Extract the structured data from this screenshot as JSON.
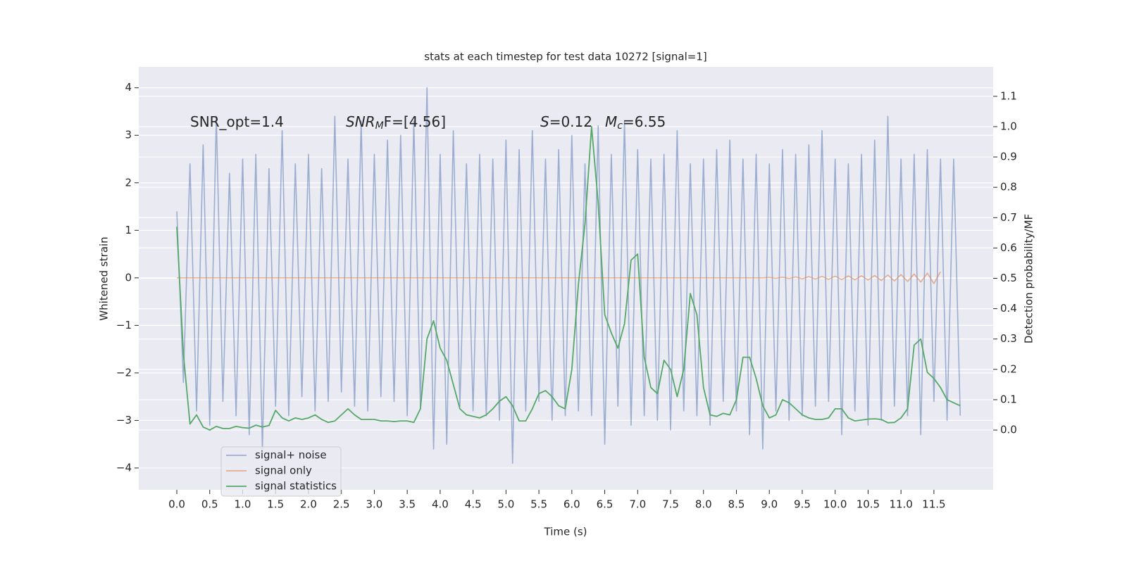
{
  "chart_data": {
    "type": "line",
    "title": "stats at each timestep for test data 10272 [signal=1]",
    "xlabel": "Time (s)",
    "ylabel": "Whitened strain",
    "y2label": "Detection probability/MF",
    "annotations": [
      [
        "SNR_opt=1.4"
      ],
      [
        "SNR",
        "M",
        "F=[4.56]"
      ],
      [
        "S",
        "=0.12"
      ],
      [
        "M",
        "c",
        "=6.55"
      ]
    ],
    "xlim": [
      -0.578,
      12.4
    ],
    "xticks": [
      {
        "value": 0,
        "label": "0.0"
      },
      0.5,
      {
        "value": 1,
        "label": "1.0"
      },
      1.5,
      {
        "value": 2,
        "label": "2.0"
      },
      2.5,
      {
        "value": 3,
        "label": "3.0"
      },
      3.5,
      {
        "value": 4,
        "label": "4.0"
      },
      4.5,
      {
        "value": 5,
        "label": "5.0"
      },
      5.5,
      {
        "value": 6,
        "label": "6.0"
      },
      6.5,
      {
        "value": 7,
        "label": "7.0"
      },
      7.5,
      {
        "value": 8,
        "label": "8.0"
      },
      8.5,
      {
        "value": 9,
        "label": "9.0"
      },
      9.5,
      {
        "value": 10,
        "label": "10.0"
      },
      10.5,
      {
        "value": 11,
        "label": "11.0"
      },
      11.5
    ],
    "ylim": [
      -4.46,
      4.44
    ],
    "yticks": [
      {
        "value": -4,
        "label": "−4"
      },
      {
        "value": -3,
        "label": "−3"
      },
      {
        "value": -2,
        "label": "−2"
      },
      {
        "value": -1,
        "label": "−1"
      },
      0,
      1,
      2,
      3,
      4
    ],
    "y2lim": [
      -0.197,
      1.197
    ],
    "y2ticks": [
      {
        "value": 0,
        "label": "0.0"
      },
      0.1,
      0.2,
      0.3,
      0.4,
      0.5,
      0.6,
      0.7,
      0.8,
      0.9,
      {
        "value": 1,
        "label": "1.0"
      },
      1.1
    ],
    "grid": true,
    "legend": "lower left",
    "x": [
      0.0,
      0.1,
      0.2,
      0.3,
      0.4,
      0.5,
      0.6,
      0.7,
      0.8,
      0.9,
      1.0,
      1.1,
      1.2,
      1.3,
      1.4,
      1.5,
      1.6,
      1.7,
      1.8,
      1.9,
      2.0,
      2.1,
      2.2,
      2.3,
      2.4,
      2.5,
      2.6,
      2.7,
      2.8,
      2.9,
      3.0,
      3.1,
      3.2,
      3.3,
      3.4,
      3.5,
      3.6,
      3.7,
      3.8,
      3.9,
      4.0,
      4.1,
      4.2,
      4.3,
      4.4,
      4.5,
      4.6,
      4.7,
      4.8,
      4.9,
      5.0,
      5.1,
      5.2,
      5.3,
      5.4,
      5.5,
      5.6,
      5.7,
      5.8,
      5.9,
      6.0,
      6.1,
      6.2,
      6.3,
      6.4,
      6.5,
      6.6,
      6.7,
      6.8,
      6.9,
      7.0,
      7.1,
      7.2,
      7.3,
      7.4,
      7.5,
      7.6,
      7.7,
      7.8,
      7.9,
      8.0,
      8.1,
      8.2,
      8.3,
      8.4,
      8.5,
      8.6,
      8.7,
      8.8,
      8.9,
      9.0,
      9.1,
      9.2,
      9.3,
      9.4,
      9.5,
      9.6,
      9.7,
      9.8,
      9.9,
      10.0,
      10.1,
      10.2,
      10.3,
      10.4,
      10.5,
      10.6,
      10.7,
      10.8,
      10.9,
      11.0,
      11.1,
      11.2,
      11.3,
      11.4,
      11.5,
      11.6,
      11.7,
      11.8,
      11.9
    ],
    "series": [
      {
        "name": "signal+ noise",
        "color": "#4c72b0",
        "values": [
          1.4,
          -2.2,
          2.4,
          -2.8,
          2.8,
          -3.1,
          3.4,
          -2.6,
          2.2,
          -2.9,
          2.5,
          -3.3,
          2.6,
          -3.6,
          2.3,
          -2.7,
          3.1,
          -2.9,
          2.4,
          -2.5,
          2.6,
          -2.8,
          2.3,
          -2.6,
          3.4,
          -2.4,
          2.5,
          -2.7,
          3.3,
          -2.8,
          2.6,
          -2.5,
          2.9,
          -2.6,
          3.0,
          -2.9,
          3.3,
          -2.7,
          4.0,
          -3.6,
          2.6,
          -3.5,
          3.1,
          -2.7,
          2.4,
          -2.8,
          2.6,
          -2.9,
          2.5,
          -3.0,
          2.9,
          -3.9,
          2.7,
          -2.8,
          3.1,
          -2.6,
          2.5,
          -3.0,
          2.7,
          -2.9,
          3.0,
          -2.8,
          2.4,
          -2.9,
          3.2,
          -3.5,
          2.6,
          -2.7,
          3.3,
          -3.1,
          2.7,
          -2.9,
          2.5,
          -3.0,
          2.6,
          -3.2,
          3.1,
          -2.8,
          2.4,
          -2.9,
          2.5,
          -3.1,
          2.7,
          -2.6,
          2.9,
          -2.8,
          2.5,
          -3.3,
          2.6,
          -3.6,
          2.4,
          -2.8,
          2.7,
          -3.0,
          2.6,
          -2.9,
          2.8,
          -2.7,
          3.1,
          -2.6,
          2.5,
          -3.3,
          2.4,
          -2.8,
          2.6,
          -3.1,
          2.9,
          -3.0,
          3.4,
          -2.7,
          2.5,
          -2.9,
          2.6,
          -3.3,
          2.7,
          -2.6,
          2.5,
          -3.0,
          2.5,
          -2.9
        ]
      },
      {
        "name": "signal only",
        "color": "#dd8452",
        "values": [
          0,
          0,
          0,
          0,
          0,
          0,
          0,
          0,
          0,
          0,
          0,
          0,
          0,
          0,
          0,
          0,
          0,
          0,
          0,
          0,
          0,
          0,
          0,
          0,
          0,
          0,
          0,
          0,
          0,
          0,
          0,
          0,
          0,
          0,
          0,
          0,
          0,
          0,
          0,
          0,
          0,
          0,
          0,
          0,
          0,
          0,
          0,
          0,
          0,
          0,
          0,
          0,
          0,
          0,
          0,
          0,
          0,
          0,
          0,
          0,
          0,
          0,
          0,
          0,
          0,
          0,
          0,
          0,
          0,
          0,
          0,
          0,
          0,
          0,
          0,
          0,
          0,
          0,
          0,
          0,
          0,
          0,
          0,
          0,
          0,
          0,
          0,
          0,
          0,
          0,
          0.01,
          -0.01,
          0.015,
          -0.015,
          0.02,
          -0.02,
          0.025,
          -0.025,
          0.03,
          -0.03,
          0.035,
          -0.035,
          0.04,
          -0.04,
          0.045,
          -0.045,
          0.05,
          -0.055,
          0.06,
          -0.065,
          0.07,
          -0.075,
          0.08,
          -0.09,
          0.1,
          -0.12,
          0.13,
          null,
          null,
          null
        ]
      },
      {
        "name": "signal statistics",
        "color": "#55a868",
        "axis": "y2",
        "values": [
          0.67,
          0.25,
          0.02,
          0.05,
          0.01,
          0.0,
          0.012,
          0.005,
          0.005,
          0.012,
          0.008,
          0.006,
          0.016,
          0.01,
          0.015,
          0.065,
          0.04,
          0.03,
          0.04,
          0.035,
          0.04,
          0.05,
          0.035,
          0.025,
          0.03,
          0.05,
          0.07,
          0.05,
          0.035,
          0.035,
          0.035,
          0.03,
          0.03,
          0.028,
          0.03,
          0.03,
          0.025,
          0.07,
          0.3,
          0.36,
          0.27,
          0.23,
          0.15,
          0.07,
          0.05,
          0.045,
          0.04,
          0.05,
          0.07,
          0.095,
          0.11,
          0.08,
          0.03,
          0.03,
          0.07,
          0.12,
          0.13,
          0.11,
          0.08,
          0.07,
          0.2,
          0.48,
          0.68,
          1.0,
          0.75,
          0.38,
          0.32,
          0.27,
          0.35,
          0.56,
          0.58,
          0.24,
          0.14,
          0.12,
          0.23,
          0.2,
          0.11,
          0.2,
          0.45,
          0.38,
          0.14,
          0.05,
          0.045,
          0.055,
          0.05,
          0.1,
          0.24,
          0.24,
          0.17,
          0.08,
          0.04,
          0.05,
          0.1,
          0.09,
          0.07,
          0.05,
          0.04,
          0.035,
          0.035,
          0.04,
          0.07,
          0.07,
          0.04,
          0.03,
          0.033,
          0.036,
          0.037,
          0.035,
          0.024,
          0.025,
          0.04,
          0.07,
          0.28,
          0.3,
          0.19,
          0.17,
          0.14,
          0.1,
          0.09,
          0.08
        ]
      }
    ]
  }
}
